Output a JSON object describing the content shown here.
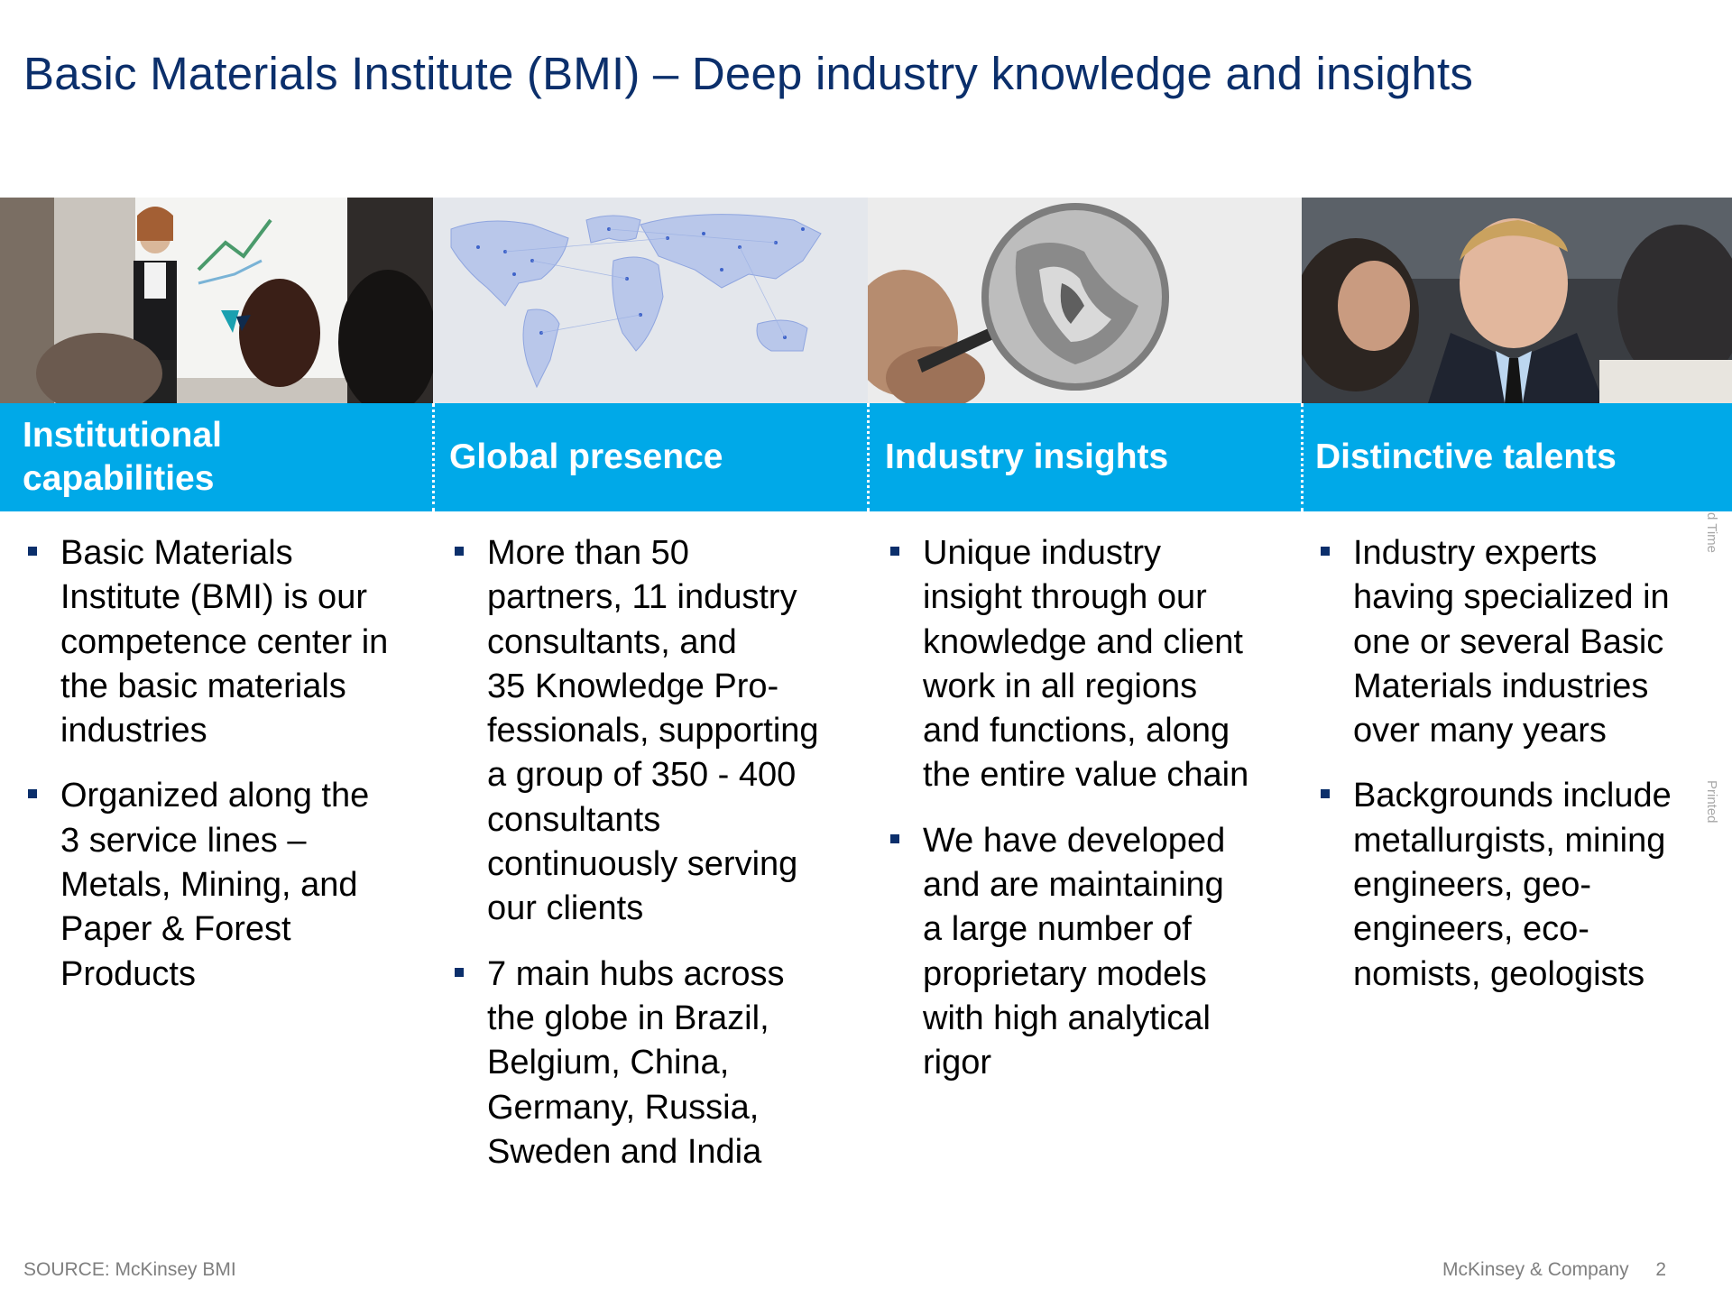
{
  "slide": {
    "title": "Basic Materials Institute (BMI) – Deep industry knowledge and insights"
  },
  "columns": [
    {
      "header": [
        "Institutional",
        "capabilities"
      ],
      "bullets": [
        [
          "Basic Materials",
          "Institute (BMI) is our",
          "competence center in",
          "the basic materials",
          "industries"
        ],
        [
          "Organized along the",
          "3 service lines –",
          "Metals, Mining, and",
          "Paper & Forest",
          "Products"
        ]
      ]
    },
    {
      "header": [
        "Global presence"
      ],
      "bullets": [
        [
          "More than 50",
          "partners, 11 industry",
          "consultants, and",
          "35 Knowledge Pro-",
          "fessionals, supporting",
          "a group of 350 - 400",
          "consultants",
          "continuously serving",
          "our clients"
        ],
        [
          "7 main hubs across",
          "the globe in Brazil,",
          "Belgium, China,",
          "Germany, Russia,",
          "Sweden and India"
        ]
      ]
    },
    {
      "header": [
        "Industry insights"
      ],
      "bullets": [
        [
          "Unique industry",
          "insight through our",
          "knowledge and client",
          "work in all regions",
          "and functions, along",
          "the entire value chain"
        ],
        [
          "We have developed",
          "and are maintaining",
          "a large number of",
          "proprietary models",
          "with high analytical",
          "rigor"
        ]
      ]
    },
    {
      "header": [
        "Distinctive talents"
      ],
      "bullets": [
        [
          "Industry experts",
          "having specialized in",
          "one or several Basic",
          "Materials industries",
          "over many years"
        ],
        [
          "Backgrounds include",
          "metallurgists, mining",
          "engineers, geo-",
          "engineers, eco-",
          "nomists, geologists"
        ]
      ]
    }
  ],
  "footer": {
    "source": "SOURCE: McKinsey BMI",
    "company": "McKinsey & Company",
    "page": "2"
  },
  "side_notes": {
    "top": "d Time",
    "bottom": "Printed"
  },
  "colors": {
    "title": "#0b2f6b",
    "header_band": "#00a9e8",
    "bullet": "#0b2f6b",
    "footer": "#7f7f7f"
  }
}
